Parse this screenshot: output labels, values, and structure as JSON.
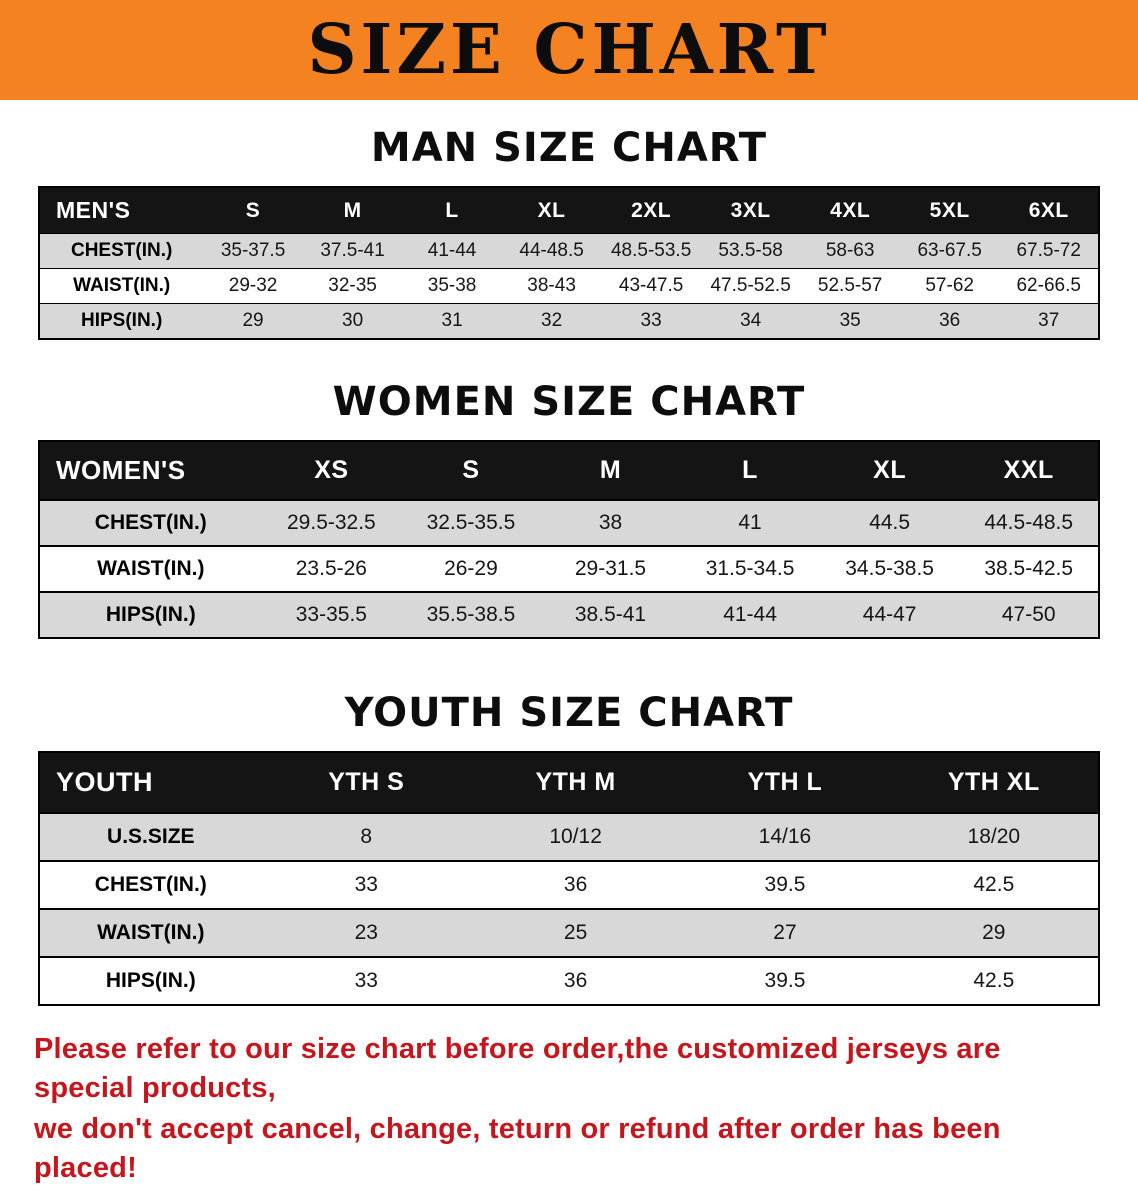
{
  "banner": {
    "title": "SIZE CHART"
  },
  "colors": {
    "banner_orange": "#f58220",
    "header_black": "#141414",
    "row_gray": "#d8d8d8",
    "footer_red": "#c5161d"
  },
  "sections": [
    {
      "id": "men",
      "heading": "MAN SIZE CHART",
      "table": {
        "title": "MEN'S",
        "columns": [
          "S",
          "M",
          "L",
          "XL",
          "2XL",
          "3XL",
          "4XL",
          "5XL",
          "6XL"
        ],
        "rows": [
          {
            "label": "CHEST(IN.)",
            "values": [
              "35-37.5",
              "37.5-41",
              "41-44",
              "44-48.5",
              "48.5-53.5",
              "53.5-58",
              "58-63",
              "63-67.5",
              "67.5-72"
            ]
          },
          {
            "label": "WAIST(IN.)",
            "values": [
              "29-32",
              "32-35",
              "35-38",
              "38-43",
              "43-47.5",
              "47.5-52.5",
              "52.5-57",
              "57-62",
              "62-66.5"
            ]
          },
          {
            "label": "HIPS(IN.)",
            "values": [
              "29",
              "30",
              "31",
              "32",
              "33",
              "34",
              "35",
              "36",
              "37"
            ]
          }
        ]
      }
    },
    {
      "id": "women",
      "heading": "WOMEN SIZE CHART",
      "table": {
        "title": "WOMEN'S",
        "columns": [
          "XS",
          "S",
          "M",
          "L",
          "XL",
          "XXL"
        ],
        "rows": [
          {
            "label": "CHEST(IN.)",
            "values": [
              "29.5-32.5",
              "32.5-35.5",
              "38",
              "41",
              "44.5",
              "44.5-48.5"
            ]
          },
          {
            "label": "WAIST(IN.)",
            "values": [
              "23.5-26",
              "26-29",
              "29-31.5",
              "31.5-34.5",
              "34.5-38.5",
              "38.5-42.5"
            ]
          },
          {
            "label": "HIPS(IN.)",
            "values": [
              "33-35.5",
              "35.5-38.5",
              "38.5-41",
              "41-44",
              "44-47",
              "47-50"
            ]
          }
        ]
      }
    },
    {
      "id": "youth",
      "heading": "YOUTH SIZE CHART",
      "table": {
        "title": "YOUTH",
        "columns": [
          "YTH S",
          "YTH M",
          "YTH L",
          "YTH XL"
        ],
        "rows": [
          {
            "label": "U.S.SIZE",
            "values": [
              "8",
              "10/12",
              "14/16",
              "18/20"
            ]
          },
          {
            "label": "CHEST(IN.)",
            "values": [
              "33",
              "36",
              "39.5",
              "42.5"
            ]
          },
          {
            "label": "WAIST(IN.)",
            "values": [
              "23",
              "25",
              "27",
              "29"
            ]
          },
          {
            "label": "HIPS(IN.)",
            "values": [
              "33",
              "36",
              "39.5",
              "42.5"
            ]
          }
        ]
      }
    }
  ],
  "footer": {
    "line1": "Please refer to our size chart before order,the customized jerseys are special products,",
    "line2": "we don't accept cancel, change, teturn or refund after order has been placed!"
  }
}
